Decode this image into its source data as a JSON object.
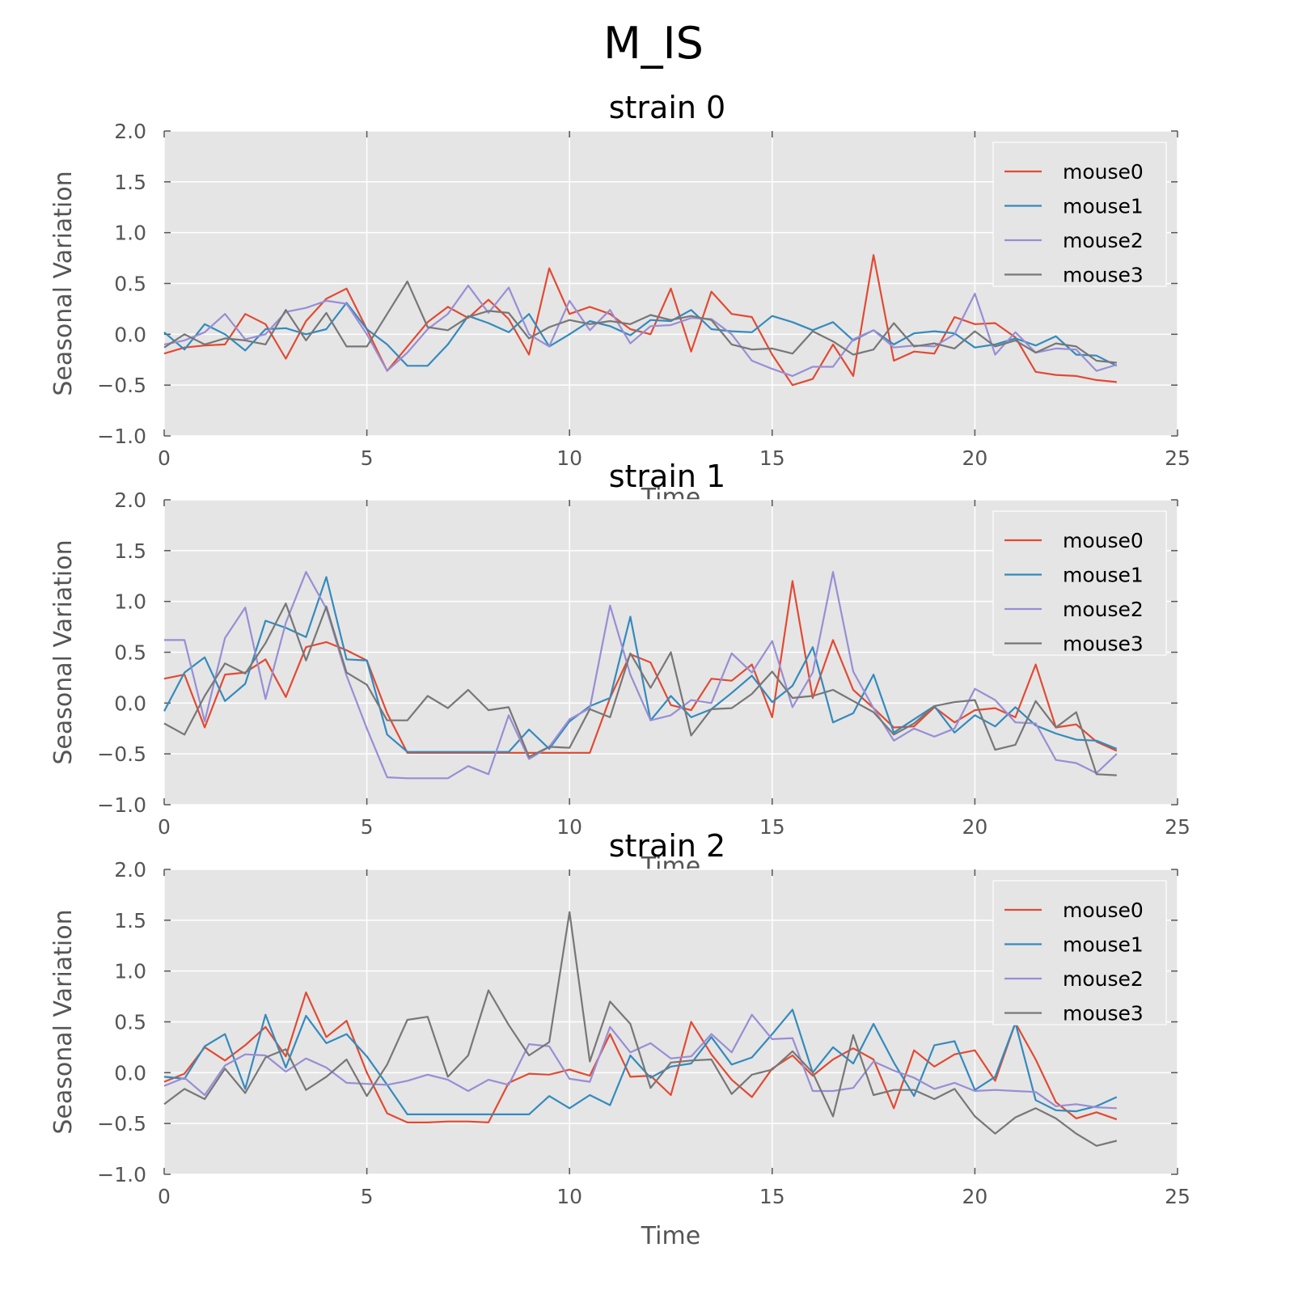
{
  "figure": {
    "title": "M_IS"
  },
  "chart_data": [
    {
      "type": "line",
      "title": "strain 0",
      "xlabel": "Time",
      "ylabel": "Seasonal Variation",
      "xlim": [
        0,
        25
      ],
      "ylim": [
        -1.0,
        2.0
      ],
      "xticks": [
        "0",
        "5",
        "10",
        "15",
        "20",
        "25"
      ],
      "yticks": [
        "−1.0",
        "−0.5",
        "0.0",
        "0.5",
        "1.0",
        "1.5",
        "2.0"
      ],
      "grid": true,
      "legend": "top-right",
      "x": [
        0,
        0.5,
        1,
        1.5,
        2,
        2.5,
        3,
        3.5,
        4,
        4.5,
        5,
        5.5,
        6,
        6.5,
        7,
        7.5,
        8,
        8.5,
        9,
        9.5,
        10,
        10.5,
        11,
        11.5,
        12,
        12.5,
        13,
        13.5,
        14,
        14.5,
        15,
        15.5,
        16,
        16.5,
        17,
        17.5,
        18,
        18.5,
        19,
        19.5,
        20,
        20.5,
        21,
        21.5,
        22,
        22.5,
        23,
        23.5
      ],
      "series": [
        {
          "name": "mouse0",
          "color": "#e24a33",
          "values": [
            -0.19,
            -0.13,
            -0.11,
            -0.1,
            0.2,
            0.1,
            -0.24,
            0.13,
            0.35,
            0.45,
            0.05,
            -0.36,
            -0.12,
            0.12,
            0.27,
            0.16,
            0.34,
            0.15,
            -0.2,
            0.65,
            0.2,
            0.27,
            0.2,
            0.05,
            0.0,
            0.45,
            -0.17,
            0.42,
            0.2,
            0.17,
            -0.2,
            -0.5,
            -0.44,
            -0.1,
            -0.41,
            0.78,
            -0.26,
            -0.17,
            -0.19,
            0.17,
            0.1,
            0.11,
            -0.03,
            -0.37,
            -0.4,
            -0.41,
            -0.45,
            -0.47
          ]
        },
        {
          "name": "mouse1",
          "color": "#348abd",
          "values": [
            0.02,
            -0.15,
            0.1,
            0.0,
            -0.16,
            0.05,
            0.06,
            0.0,
            0.05,
            0.31,
            0.05,
            -0.1,
            -0.31,
            -0.31,
            -0.1,
            0.18,
            0.11,
            0.02,
            0.2,
            -0.12,
            0.0,
            0.13,
            0.08,
            -0.01,
            0.14,
            0.13,
            0.24,
            0.05,
            0.03,
            0.02,
            0.18,
            0.12,
            0.04,
            0.12,
            -0.06,
            0.04,
            -0.1,
            0.01,
            0.03,
            0.01,
            -0.13,
            -0.1,
            -0.04,
            -0.11,
            -0.02,
            -0.2,
            -0.21,
            -0.31
          ]
        },
        {
          "name": "mouse2",
          "color": "#988ed5",
          "values": [
            -0.1,
            -0.06,
            0.02,
            0.2,
            -0.05,
            0.0,
            0.22,
            0.26,
            0.33,
            0.3,
            0.0,
            -0.36,
            -0.18,
            0.05,
            0.2,
            0.48,
            0.21,
            0.46,
            0.0,
            -0.12,
            0.33,
            0.04,
            0.24,
            -0.09,
            0.08,
            0.09,
            0.16,
            0.15,
            0.0,
            -0.26,
            -0.34,
            -0.41,
            -0.32,
            -0.32,
            -0.05,
            0.04,
            -0.13,
            -0.11,
            -0.12,
            0.0,
            0.4,
            -0.2,
            0.02,
            -0.18,
            -0.14,
            -0.15,
            -0.36,
            -0.3
          ]
        },
        {
          "name": "mouse3",
          "color": "#777777",
          "values": [
            -0.13,
            0.0,
            -0.1,
            -0.04,
            -0.06,
            -0.1,
            0.24,
            -0.06,
            0.21,
            -0.12,
            -0.12,
            0.2,
            0.52,
            0.07,
            0.04,
            0.17,
            0.23,
            0.21,
            -0.04,
            0.07,
            0.14,
            0.1,
            0.13,
            0.1,
            0.19,
            0.14,
            0.18,
            0.14,
            -0.1,
            -0.15,
            -0.14,
            -0.19,
            0.03,
            -0.07,
            -0.2,
            -0.15,
            0.11,
            -0.12,
            -0.09,
            -0.14,
            0.03,
            -0.12,
            -0.06,
            -0.18,
            -0.09,
            -0.12,
            -0.26,
            -0.28
          ]
        }
      ]
    },
    {
      "type": "line",
      "title": "strain 1",
      "xlabel": "Time",
      "ylabel": "Seasonal Variation",
      "xlim": [
        0,
        25
      ],
      "ylim": [
        -1.0,
        2.0
      ],
      "xticks": [
        "0",
        "5",
        "10",
        "15",
        "20",
        "25"
      ],
      "yticks": [
        "−1.0",
        "−0.5",
        "0.0",
        "0.5",
        "1.0",
        "1.5",
        "2.0"
      ],
      "grid": true,
      "legend": "top-right",
      "x": [
        0,
        0.5,
        1,
        1.5,
        2,
        2.5,
        3,
        3.5,
        4,
        4.5,
        5,
        5.5,
        6,
        6.5,
        7,
        7.5,
        8,
        8.5,
        9,
        9.5,
        10,
        10.5,
        11,
        11.5,
        12,
        12.5,
        13,
        13.5,
        14,
        14.5,
        15,
        15.5,
        16,
        16.5,
        17,
        17.5,
        18,
        18.5,
        19,
        19.5,
        20,
        20.5,
        21,
        21.5,
        22,
        22.5,
        23,
        23.5
      ],
      "series": [
        {
          "name": "mouse0",
          "color": "#e24a33",
          "values": [
            0.24,
            0.28,
            -0.24,
            0.28,
            0.3,
            0.43,
            0.06,
            0.55,
            0.6,
            0.52,
            0.42,
            -0.1,
            -0.49,
            -0.49,
            -0.49,
            -0.49,
            -0.49,
            -0.49,
            -0.49,
            -0.49,
            -0.49,
            -0.49,
            0.05,
            0.48,
            0.4,
            -0.02,
            -0.07,
            0.24,
            0.22,
            0.38,
            -0.14,
            1.2,
            0.05,
            0.62,
            0.13,
            -0.05,
            -0.24,
            -0.23,
            -0.04,
            -0.19,
            -0.07,
            -0.05,
            -0.14,
            0.38,
            -0.24,
            -0.21,
            -0.38,
            -0.47
          ]
        },
        {
          "name": "mouse1",
          "color": "#348abd",
          "values": [
            -0.08,
            0.3,
            0.45,
            0.02,
            0.19,
            0.81,
            0.74,
            0.65,
            1.24,
            0.43,
            0.42,
            -0.31,
            -0.48,
            -0.48,
            -0.48,
            -0.48,
            -0.48,
            -0.48,
            -0.26,
            -0.45,
            -0.18,
            -0.03,
            0.05,
            0.85,
            -0.17,
            0.07,
            -0.14,
            -0.06,
            0.1,
            0.27,
            0.01,
            0.17,
            0.55,
            -0.19,
            -0.1,
            0.28,
            -0.29,
            -0.16,
            -0.03,
            -0.29,
            -0.12,
            -0.23,
            -0.04,
            -0.22,
            -0.3,
            -0.36,
            -0.37,
            -0.45
          ]
        },
        {
          "name": "mouse2",
          "color": "#988ed5",
          "values": [
            0.62,
            0.62,
            -0.18,
            0.64,
            0.94,
            0.04,
            0.79,
            1.29,
            0.93,
            0.27,
            -0.25,
            -0.73,
            -0.74,
            -0.74,
            -0.74,
            -0.62,
            -0.7,
            -0.12,
            -0.55,
            -0.43,
            -0.16,
            -0.05,
            0.96,
            0.28,
            -0.17,
            -0.12,
            0.03,
            0.0,
            0.49,
            0.3,
            0.61,
            -0.04,
            0.3,
            1.29,
            0.31,
            -0.05,
            -0.37,
            -0.25,
            -0.33,
            -0.25,
            0.14,
            0.03,
            -0.19,
            -0.2,
            -0.56,
            -0.59,
            -0.69,
            -0.5
          ]
        },
        {
          "name": "mouse3",
          "color": "#777777",
          "values": [
            -0.2,
            -0.31,
            0.07,
            0.39,
            0.29,
            0.59,
            0.98,
            0.42,
            0.95,
            0.3,
            0.18,
            -0.17,
            -0.17,
            0.07,
            -0.05,
            0.13,
            -0.07,
            -0.04,
            -0.53,
            -0.43,
            -0.44,
            -0.06,
            -0.14,
            0.49,
            0.15,
            0.5,
            -0.32,
            -0.06,
            -0.05,
            0.09,
            0.31,
            0.05,
            0.07,
            0.13,
            0.02,
            -0.09,
            -0.31,
            -0.2,
            -0.03,
            0.01,
            0.03,
            -0.46,
            -0.41,
            0.02,
            -0.24,
            -0.09,
            -0.7,
            -0.71
          ]
        }
      ]
    },
    {
      "type": "line",
      "title": "strain 2",
      "xlabel": "Time",
      "ylabel": "Seasonal Variation",
      "xlim": [
        0,
        25
      ],
      "ylim": [
        -1.0,
        2.0
      ],
      "xticks": [
        "0",
        "5",
        "10",
        "15",
        "20",
        "25"
      ],
      "yticks": [
        "−1.0",
        "−0.5",
        "0.0",
        "0.5",
        "1.0",
        "1.5",
        "2.0"
      ],
      "grid": true,
      "legend": "top-right",
      "x": [
        0,
        0.5,
        1,
        1.5,
        2,
        2.5,
        3,
        3.5,
        4,
        4.5,
        5,
        5.5,
        6,
        6.5,
        7,
        7.5,
        8,
        8.5,
        9,
        9.5,
        10,
        10.5,
        11,
        11.5,
        12,
        12.5,
        13,
        13.5,
        14,
        14.5,
        15,
        15.5,
        16,
        16.5,
        17,
        17.5,
        18,
        18.5,
        19,
        19.5,
        20,
        20.5,
        21,
        21.5,
        22,
        22.5,
        23,
        23.5
      ],
      "series": [
        {
          "name": "mouse0",
          "color": "#e24a33",
          "values": [
            -0.09,
            -0.01,
            0.25,
            0.12,
            0.27,
            0.45,
            0.16,
            0.79,
            0.35,
            0.51,
            0.0,
            -0.4,
            -0.49,
            -0.49,
            -0.48,
            -0.48,
            -0.49,
            -0.1,
            -0.01,
            -0.02,
            0.03,
            -0.03,
            0.38,
            -0.04,
            -0.03,
            -0.22,
            0.5,
            0.18,
            -0.07,
            -0.24,
            0.04,
            0.17,
            -0.03,
            0.13,
            0.24,
            0.13,
            -0.35,
            0.22,
            0.06,
            0.18,
            0.22,
            -0.08,
            0.49,
            0.13,
            -0.29,
            -0.45,
            -0.39,
            -0.46
          ]
        },
        {
          "name": "mouse1",
          "color": "#348abd",
          "values": [
            -0.04,
            -0.06,
            0.26,
            0.38,
            -0.16,
            0.57,
            0.05,
            0.56,
            0.29,
            0.38,
            0.16,
            -0.12,
            -0.41,
            -0.41,
            -0.41,
            -0.41,
            -0.41,
            -0.41,
            -0.41,
            -0.23,
            -0.35,
            -0.22,
            -0.32,
            0.17,
            -0.05,
            0.06,
            0.09,
            0.35,
            0.08,
            0.15,
            0.38,
            0.62,
            0.0,
            0.25,
            0.09,
            0.48,
            0.1,
            -0.23,
            0.27,
            0.31,
            -0.17,
            -0.04,
            0.49,
            -0.27,
            -0.37,
            -0.38,
            -0.33,
            -0.24
          ]
        },
        {
          "name": "mouse2",
          "color": "#988ed5",
          "values": [
            -0.13,
            -0.05,
            -0.22,
            0.07,
            0.18,
            0.17,
            0.01,
            0.14,
            0.05,
            -0.1,
            -0.11,
            -0.12,
            -0.08,
            -0.02,
            -0.07,
            -0.18,
            -0.07,
            -0.12,
            0.28,
            0.26,
            -0.06,
            -0.09,
            0.45,
            0.2,
            0.29,
            0.14,
            0.16,
            0.38,
            0.2,
            0.57,
            0.33,
            0.34,
            -0.18,
            -0.18,
            -0.15,
            0.11,
            0.02,
            -0.05,
            -0.16,
            -0.1,
            -0.18,
            -0.17,
            -0.18,
            -0.19,
            -0.33,
            -0.31,
            -0.34,
            -0.35
          ]
        },
        {
          "name": "mouse3",
          "color": "#777777",
          "values": [
            -0.31,
            -0.16,
            -0.26,
            0.04,
            -0.2,
            0.15,
            0.23,
            -0.17,
            -0.04,
            0.13,
            -0.23,
            0.08,
            0.52,
            0.55,
            -0.04,
            0.17,
            0.81,
            0.47,
            0.17,
            0.3,
            1.58,
            0.11,
            0.7,
            0.48,
            -0.15,
            0.1,
            0.12,
            0.13,
            -0.21,
            -0.02,
            0.03,
            0.21,
            0.0,
            -0.43,
            0.37,
            -0.22,
            -0.17,
            -0.17,
            -0.26,
            -0.16,
            -0.43,
            -0.6,
            -0.44,
            -0.35,
            -0.45,
            -0.6,
            -0.72,
            -0.67
          ]
        }
      ]
    }
  ]
}
